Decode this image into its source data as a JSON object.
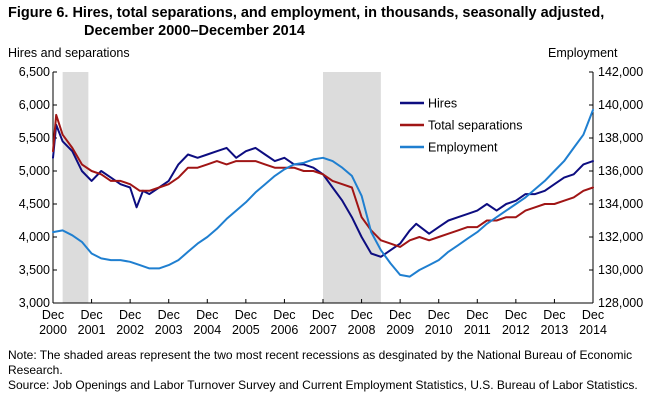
{
  "chart_data": {
    "type": "line",
    "title_line1": "Figure 6. Hires, total separations, and employment, in thousands, seasonally adjusted,",
    "title_line2": "December 2000–December 2014",
    "left_axis_label": "Hires and  separations",
    "right_axis_label": "Employment",
    "left_ylim": [
      3000,
      6500
    ],
    "left_ticks": [
      "3,000",
      "3,500",
      "4,000",
      "4,500",
      "5,000",
      "5,500",
      "6,000",
      "6,500"
    ],
    "right_ylim": [
      128000,
      142000
    ],
    "right_ticks": [
      "128,000",
      "130,000",
      "132,000",
      "134,000",
      "136,000",
      "138,000",
      "140,000",
      "142,000"
    ],
    "x_ticks": [
      {
        "mon": "Dec",
        "year": "2000"
      },
      {
        "mon": "Dec",
        "year": "2001"
      },
      {
        "mon": "Dec",
        "year": "2002"
      },
      {
        "mon": "Dec",
        "year": "2003"
      },
      {
        "mon": "Dec",
        "year": "2004"
      },
      {
        "mon": "Dec",
        "year": "2005"
      },
      {
        "mon": "Dec",
        "year": "2006"
      },
      {
        "mon": "Dec",
        "year": "2007"
      },
      {
        "mon": "Dec",
        "year": "2008"
      },
      {
        "mon": "Dec",
        "year": "2009"
      },
      {
        "mon": "Dec",
        "year": "2010"
      },
      {
        "mon": "Dec",
        "year": "2011"
      },
      {
        "mon": "Dec",
        "year": "2012"
      },
      {
        "mon": "Dec",
        "year": "2013"
      },
      {
        "mon": "Dec",
        "year": "2014"
      }
    ],
    "recessions": [
      {
        "start": "2001-03",
        "end": "2001-11"
      },
      {
        "start": "2007-12",
        "end": "2009-06"
      }
    ],
    "legend_placement": "upper-right",
    "grid": false,
    "series": [
      {
        "name": "Hires",
        "axis": "left",
        "color": "#0d0d80",
        "points": [
          [
            "2000-12",
            5200
          ],
          [
            "2001-01",
            5700
          ],
          [
            "2001-03",
            5450
          ],
          [
            "2001-06",
            5300
          ],
          [
            "2001-09",
            5000
          ],
          [
            "2001-12",
            4850
          ],
          [
            "2002-03",
            5000
          ],
          [
            "2002-06",
            4900
          ],
          [
            "2002-09",
            4800
          ],
          [
            "2002-12",
            4750
          ],
          [
            "2003-02",
            4450
          ],
          [
            "2003-04",
            4700
          ],
          [
            "2003-06",
            4650
          ],
          [
            "2003-09",
            4750
          ],
          [
            "2003-12",
            4850
          ],
          [
            "2004-03",
            5100
          ],
          [
            "2004-06",
            5250
          ],
          [
            "2004-09",
            5200
          ],
          [
            "2004-12",
            5250
          ],
          [
            "2005-03",
            5300
          ],
          [
            "2005-06",
            5350
          ],
          [
            "2005-09",
            5200
          ],
          [
            "2005-12",
            5300
          ],
          [
            "2006-03",
            5350
          ],
          [
            "2006-06",
            5250
          ],
          [
            "2006-09",
            5150
          ],
          [
            "2006-12",
            5200
          ],
          [
            "2007-03",
            5100
          ],
          [
            "2007-06",
            5100
          ],
          [
            "2007-09",
            5050
          ],
          [
            "2007-12",
            4950
          ],
          [
            "2008-03",
            4750
          ],
          [
            "2008-06",
            4550
          ],
          [
            "2008-09",
            4300
          ],
          [
            "2008-12",
            4000
          ],
          [
            "2009-03",
            3750
          ],
          [
            "2009-06",
            3700
          ],
          [
            "2009-09",
            3800
          ],
          [
            "2009-12",
            3900
          ],
          [
            "2010-03",
            4100
          ],
          [
            "2010-05",
            4200
          ],
          [
            "2010-09",
            4050
          ],
          [
            "2010-12",
            4150
          ],
          [
            "2011-03",
            4250
          ],
          [
            "2011-06",
            4300
          ],
          [
            "2011-09",
            4350
          ],
          [
            "2011-12",
            4400
          ],
          [
            "2012-03",
            4500
          ],
          [
            "2012-06",
            4400
          ],
          [
            "2012-09",
            4500
          ],
          [
            "2012-12",
            4550
          ],
          [
            "2013-03",
            4650
          ],
          [
            "2013-06",
            4650
          ],
          [
            "2013-09",
            4700
          ],
          [
            "2013-12",
            4800
          ],
          [
            "2014-03",
            4900
          ],
          [
            "2014-06",
            4950
          ],
          [
            "2014-09",
            5100
          ],
          [
            "2014-12",
            5150
          ]
        ]
      },
      {
        "name": "Total separations",
        "axis": "left",
        "color": "#a01515",
        "points": [
          [
            "2000-12",
            5300
          ],
          [
            "2001-01",
            5850
          ],
          [
            "2001-03",
            5550
          ],
          [
            "2001-06",
            5350
          ],
          [
            "2001-09",
            5100
          ],
          [
            "2001-12",
            5000
          ],
          [
            "2002-03",
            4950
          ],
          [
            "2002-06",
            4850
          ],
          [
            "2002-09",
            4850
          ],
          [
            "2002-12",
            4800
          ],
          [
            "2003-03",
            4700
          ],
          [
            "2003-06",
            4700
          ],
          [
            "2003-09",
            4750
          ],
          [
            "2003-12",
            4800
          ],
          [
            "2004-03",
            4900
          ],
          [
            "2004-06",
            5050
          ],
          [
            "2004-09",
            5050
          ],
          [
            "2004-12",
            5100
          ],
          [
            "2005-03",
            5150
          ],
          [
            "2005-06",
            5100
          ],
          [
            "2005-09",
            5150
          ],
          [
            "2005-12",
            5150
          ],
          [
            "2006-03",
            5150
          ],
          [
            "2006-06",
            5100
          ],
          [
            "2006-09",
            5050
          ],
          [
            "2006-12",
            5050
          ],
          [
            "2007-03",
            5050
          ],
          [
            "2007-06",
            5000
          ],
          [
            "2007-09",
            5000
          ],
          [
            "2007-12",
            4950
          ],
          [
            "2008-03",
            4850
          ],
          [
            "2008-06",
            4800
          ],
          [
            "2008-09",
            4750
          ],
          [
            "2008-12",
            4300
          ],
          [
            "2009-03",
            4100
          ],
          [
            "2009-06",
            3950
          ],
          [
            "2009-09",
            3900
          ],
          [
            "2009-12",
            3850
          ],
          [
            "2010-03",
            3950
          ],
          [
            "2010-06",
            4000
          ],
          [
            "2010-09",
            3950
          ],
          [
            "2010-12",
            4000
          ],
          [
            "2011-03",
            4050
          ],
          [
            "2011-06",
            4100
          ],
          [
            "2011-09",
            4150
          ],
          [
            "2011-12",
            4150
          ],
          [
            "2012-03",
            4250
          ],
          [
            "2012-06",
            4250
          ],
          [
            "2012-09",
            4300
          ],
          [
            "2012-12",
            4300
          ],
          [
            "2013-03",
            4400
          ],
          [
            "2013-06",
            4450
          ],
          [
            "2013-09",
            4500
          ],
          [
            "2013-12",
            4500
          ],
          [
            "2014-03",
            4550
          ],
          [
            "2014-06",
            4600
          ],
          [
            "2014-09",
            4700
          ],
          [
            "2014-12",
            4750
          ]
        ]
      },
      {
        "name": "Employment",
        "axis": "right",
        "color": "#1f7fd0",
        "points": [
          [
            "2000-12",
            132300
          ],
          [
            "2001-03",
            132400
          ],
          [
            "2001-06",
            132100
          ],
          [
            "2001-09",
            131700
          ],
          [
            "2001-12",
            131000
          ],
          [
            "2002-03",
            130700
          ],
          [
            "2002-06",
            130600
          ],
          [
            "2002-09",
            130600
          ],
          [
            "2002-12",
            130500
          ],
          [
            "2003-03",
            130300
          ],
          [
            "2003-06",
            130100
          ],
          [
            "2003-09",
            130100
          ],
          [
            "2003-12",
            130300
          ],
          [
            "2004-03",
            130600
          ],
          [
            "2004-06",
            131100
          ],
          [
            "2004-09",
            131600
          ],
          [
            "2004-12",
            132000
          ],
          [
            "2005-03",
            132500
          ],
          [
            "2005-06",
            133100
          ],
          [
            "2005-09",
            133600
          ],
          [
            "2005-12",
            134100
          ],
          [
            "2006-03",
            134700
          ],
          [
            "2006-06",
            135200
          ],
          [
            "2006-09",
            135700
          ],
          [
            "2006-12",
            136100
          ],
          [
            "2007-03",
            136400
          ],
          [
            "2007-06",
            136500
          ],
          [
            "2007-09",
            136700
          ],
          [
            "2007-12",
            136800
          ],
          [
            "2008-03",
            136600
          ],
          [
            "2008-06",
            136200
          ],
          [
            "2008-09",
            135700
          ],
          [
            "2008-12",
            134500
          ],
          [
            "2009-03",
            132300
          ],
          [
            "2009-06",
            131200
          ],
          [
            "2009-09",
            130400
          ],
          [
            "2009-12",
            129700
          ],
          [
            "2010-03",
            129600
          ],
          [
            "2010-06",
            130000
          ],
          [
            "2010-09",
            130300
          ],
          [
            "2010-12",
            130600
          ],
          [
            "2011-03",
            131100
          ],
          [
            "2011-06",
            131500
          ],
          [
            "2011-09",
            131900
          ],
          [
            "2011-12",
            132300
          ],
          [
            "2012-03",
            132800
          ],
          [
            "2012-06",
            133200
          ],
          [
            "2012-09",
            133600
          ],
          [
            "2012-12",
            134000
          ],
          [
            "2013-03",
            134400
          ],
          [
            "2013-06",
            134900
          ],
          [
            "2013-09",
            135400
          ],
          [
            "2013-12",
            136000
          ],
          [
            "2014-03",
            136600
          ],
          [
            "2014-06",
            137400
          ],
          [
            "2014-09",
            138200
          ],
          [
            "2014-12",
            139700
          ]
        ]
      }
    ]
  },
  "notes": {
    "note": "Note: The shaded areas represent the two most recent recessions as desginated by the National Bureau of Economic Research.",
    "source": "Source: Job Openings and Labor Turnover Survey and Current Employment Statistics, U.S. Bureau of Labor Statistics."
  }
}
